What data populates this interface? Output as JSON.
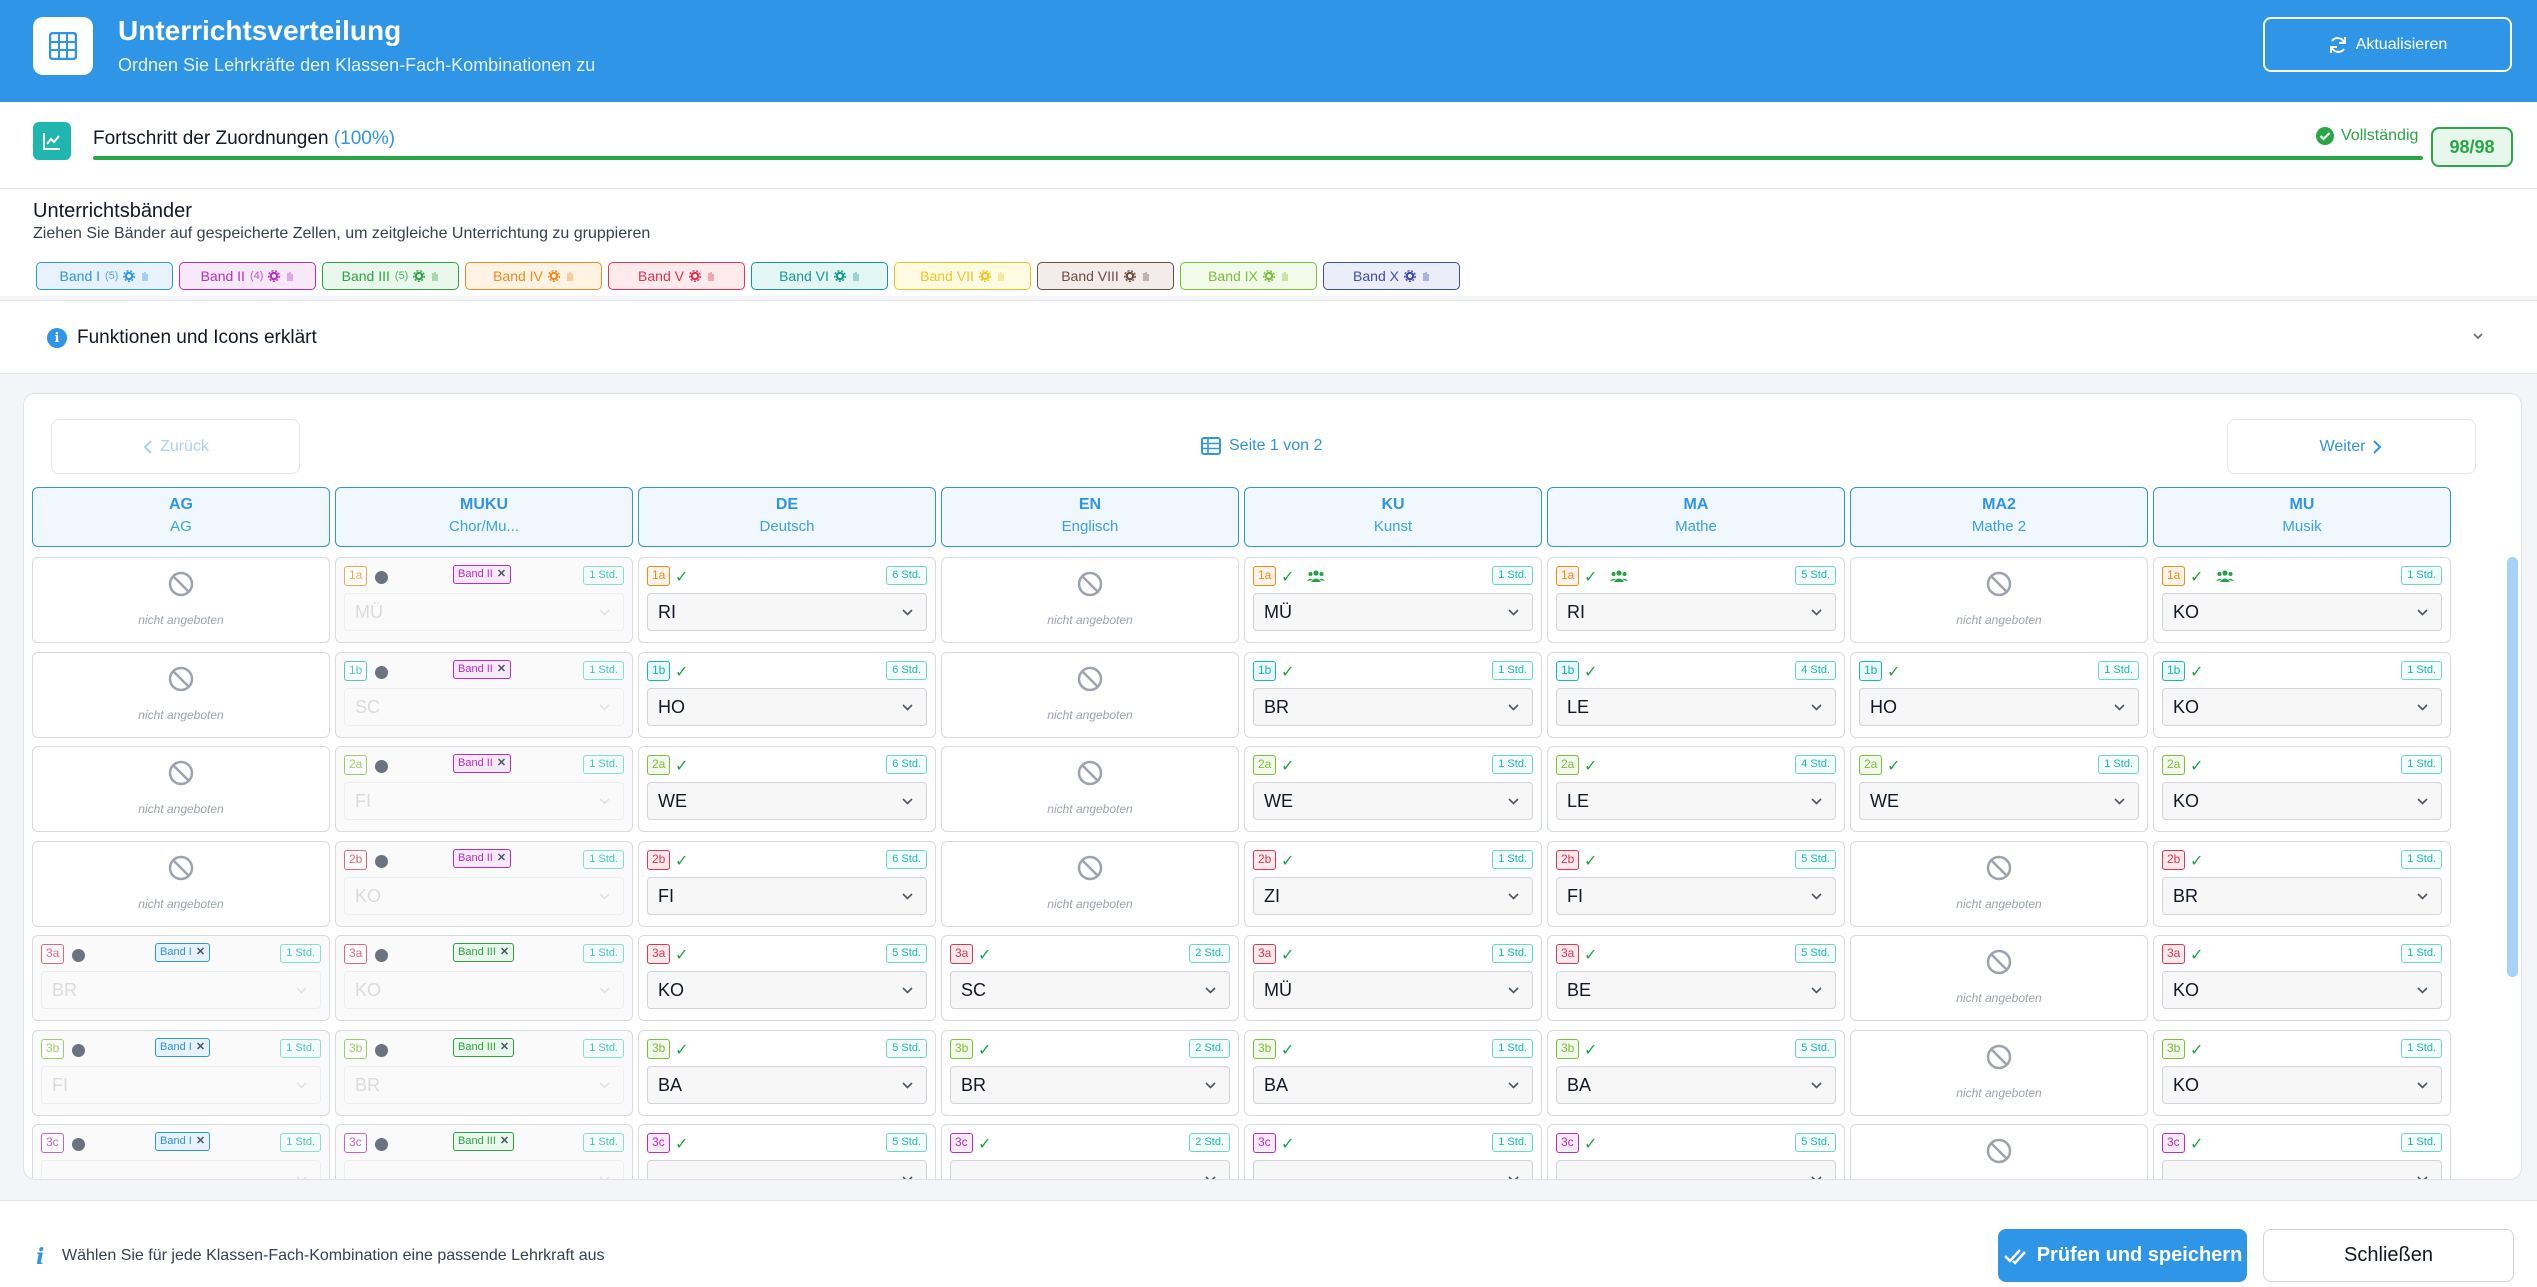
{
  "header": {
    "title": "Unterrichtsverteilung",
    "subtitle": "Ordnen Sie Lehrkräfte den Klassen-Fach-Kombinationen zu",
    "refresh_label": "Aktualisieren",
    "icon": "grid-icon"
  },
  "progress": {
    "label": "Fortschritt der Zuordnungen",
    "percent_text": "(100%)",
    "fraction": 1.0,
    "status": "Vollständig",
    "count": "98/98"
  },
  "bands": {
    "title": "Unterrichtsbänder",
    "hint": "Ziehen Sie Bänder auf gespeicherte Zellen, um zeitgleiche Unterrichtung zu gruppieren",
    "items": [
      {
        "label": "Band I",
        "count": "(5)",
        "color": "#2f95e6",
        "bg": "#e7f2fd"
      },
      {
        "label": "Band II",
        "count": "(4)",
        "color": "#b62fc1",
        "bg": "#f8e9fa"
      },
      {
        "label": "Band III",
        "count": "(5)",
        "color": "#2ea443",
        "bg": "#eaf7ec"
      },
      {
        "label": "Band IV",
        "count": "",
        "color": "#f08a1c",
        "bg": "#fff3e4"
      },
      {
        "label": "Band V",
        "count": "",
        "color": "#e0344f",
        "bg": "#fdeaed"
      },
      {
        "label": "Band VI",
        "count": "",
        "color": "#159a8f",
        "bg": "#e3f6f4"
      },
      {
        "label": "Band VII",
        "count": "",
        "color": "#f0c51e",
        "bg": "#fffbe3"
      },
      {
        "label": "Band VIII",
        "count": "",
        "color": "#6d4c41",
        "bg": "#f3ecea"
      },
      {
        "label": "Band IX",
        "count": "",
        "color": "#7cbf3a",
        "bg": "#f2faea"
      },
      {
        "label": "Band X",
        "count": "",
        "color": "#3f4bb0",
        "bg": "#ebedf9"
      }
    ]
  },
  "info": {
    "title": "Funktionen und Icons erklärt"
  },
  "pagination": {
    "back": "Zurück",
    "next": "Weiter",
    "page": "Seite 1 von 2"
  },
  "na_text": "nicht angeboten",
  "columns": [
    {
      "code": "AG",
      "name": "AG"
    },
    {
      "code": "MUKU",
      "name": "Chor/Mu..."
    },
    {
      "code": "DE",
      "name": "Deutsch"
    },
    {
      "code": "EN",
      "name": "Englisch"
    },
    {
      "code": "KU",
      "name": "Kunst"
    },
    {
      "code": "MA",
      "name": "Mathe"
    },
    {
      "code": "MA2",
      "name": "Mathe 2"
    },
    {
      "code": "MU",
      "name": "Musik"
    }
  ],
  "class_colors": {
    "1a": "#f08a1c",
    "1b": "#1fb6b0",
    "2a": "#7cbf3a",
    "2b": "#e0344f",
    "3a": "#e0344f",
    "3b": "#7cbf3a",
    "3c": "#b62fc1"
  },
  "rows": [
    {
      "cells": [
        {
          "na": true
        },
        {
          "cls": "1a",
          "locked": true,
          "band": "Band II",
          "hours": "1 Std.",
          "teacher": "MÜ"
        },
        {
          "cls": "1a",
          "hours": "6 Std.",
          "teacher": "RI"
        },
        {
          "na": true
        },
        {
          "cls": "1a",
          "group": true,
          "hours": "1 Std.",
          "teacher": "MÜ"
        },
        {
          "cls": "1a",
          "group": true,
          "hours": "5 Std.",
          "teacher": "RI"
        },
        {
          "na": true
        },
        {
          "cls": "1a",
          "group": true,
          "hours": "1 Std.",
          "teacher": "KO"
        }
      ]
    },
    {
      "cells": [
        {
          "na": true
        },
        {
          "cls": "1b",
          "locked": true,
          "band": "Band II",
          "hours": "1 Std.",
          "teacher": "SC"
        },
        {
          "cls": "1b",
          "hours": "6 Std.",
          "teacher": "HO"
        },
        {
          "na": true
        },
        {
          "cls": "1b",
          "hours": "1 Std.",
          "teacher": "BR"
        },
        {
          "cls": "1b",
          "hours": "4 Std.",
          "teacher": "LE"
        },
        {
          "cls": "1b",
          "hours": "1 Std.",
          "teacher": "HO"
        },
        {
          "cls": "1b",
          "hours": "1 Std.",
          "teacher": "KO"
        }
      ]
    },
    {
      "cells": [
        {
          "na": true
        },
        {
          "cls": "2a",
          "locked": true,
          "band": "Band II",
          "hours": "1 Std.",
          "teacher": "FI"
        },
        {
          "cls": "2a",
          "hours": "6 Std.",
          "teacher": "WE"
        },
        {
          "na": true
        },
        {
          "cls": "2a",
          "hours": "1 Std.",
          "teacher": "WE"
        },
        {
          "cls": "2a",
          "hours": "4 Std.",
          "teacher": "LE"
        },
        {
          "cls": "2a",
          "hours": "1 Std.",
          "teacher": "WE"
        },
        {
          "cls": "2a",
          "hours": "1 Std.",
          "teacher": "KO"
        }
      ]
    },
    {
      "cells": [
        {
          "na": true
        },
        {
          "cls": "2b",
          "locked": true,
          "band": "Band II",
          "hours": "1 Std.",
          "teacher": "KO"
        },
        {
          "cls": "2b",
          "hours": "6 Std.",
          "teacher": "FI"
        },
        {
          "na": true
        },
        {
          "cls": "2b",
          "hours": "1 Std.",
          "teacher": "ZI"
        },
        {
          "cls": "2b",
          "hours": "5 Std.",
          "teacher": "FI"
        },
        {
          "na": true
        },
        {
          "cls": "2b",
          "hours": "1 Std.",
          "teacher": "BR"
        }
      ]
    },
    {
      "cells": [
        {
          "cls": "3a",
          "locked": true,
          "band": "Band I",
          "hours": "1 Std.",
          "teacher": "BR"
        },
        {
          "cls": "3a",
          "locked": true,
          "band": "Band III",
          "hours": "1 Std.",
          "teacher": "KO"
        },
        {
          "cls": "3a",
          "hours": "5 Std.",
          "teacher": "KO"
        },
        {
          "cls": "3a",
          "hours": "2 Std.",
          "teacher": "SC"
        },
        {
          "cls": "3a",
          "hours": "1 Std.",
          "teacher": "MÜ"
        },
        {
          "cls": "3a",
          "hours": "5 Std.",
          "teacher": "BE"
        },
        {
          "na": true
        },
        {
          "cls": "3a",
          "hours": "1 Std.",
          "teacher": "KO"
        }
      ]
    },
    {
      "cells": [
        {
          "cls": "3b",
          "locked": true,
          "band": "Band I",
          "hours": "1 Std.",
          "teacher": "FI"
        },
        {
          "cls": "3b",
          "locked": true,
          "band": "Band III",
          "hours": "1 Std.",
          "teacher": "BR"
        },
        {
          "cls": "3b",
          "hours": "5 Std.",
          "teacher": "BA"
        },
        {
          "cls": "3b",
          "hours": "2 Std.",
          "teacher": "BR"
        },
        {
          "cls": "3b",
          "hours": "1 Std.",
          "teacher": "BA"
        },
        {
          "cls": "3b",
          "hours": "5 Std.",
          "teacher": "BA"
        },
        {
          "na": true
        },
        {
          "cls": "3b",
          "hours": "1 Std.",
          "teacher": "KO"
        }
      ]
    },
    {
      "cells": [
        {
          "cls": "3c",
          "locked": true,
          "band": "Band I",
          "hours": "1 Std.",
          "teacher": ""
        },
        {
          "cls": "3c",
          "locked": true,
          "band": "Band III",
          "hours": "1 Std.",
          "teacher": ""
        },
        {
          "cls": "3c",
          "hours": "5 Std.",
          "teacher": ""
        },
        {
          "cls": "3c",
          "hours": "2 Std.",
          "teacher": ""
        },
        {
          "cls": "3c",
          "hours": "1 Std.",
          "teacher": ""
        },
        {
          "cls": "3c",
          "hours": "5 Std.",
          "teacher": ""
        },
        {
          "na": true
        },
        {
          "cls": "3c",
          "hours": "1 Std.",
          "teacher": ""
        }
      ]
    }
  ],
  "footer": {
    "hint": "Wählen Sie für jede Klassen-Fach-Kombination eine passende Lehrkraft aus",
    "save_label": "Prüfen und speichern",
    "close_label": "Schließen"
  }
}
